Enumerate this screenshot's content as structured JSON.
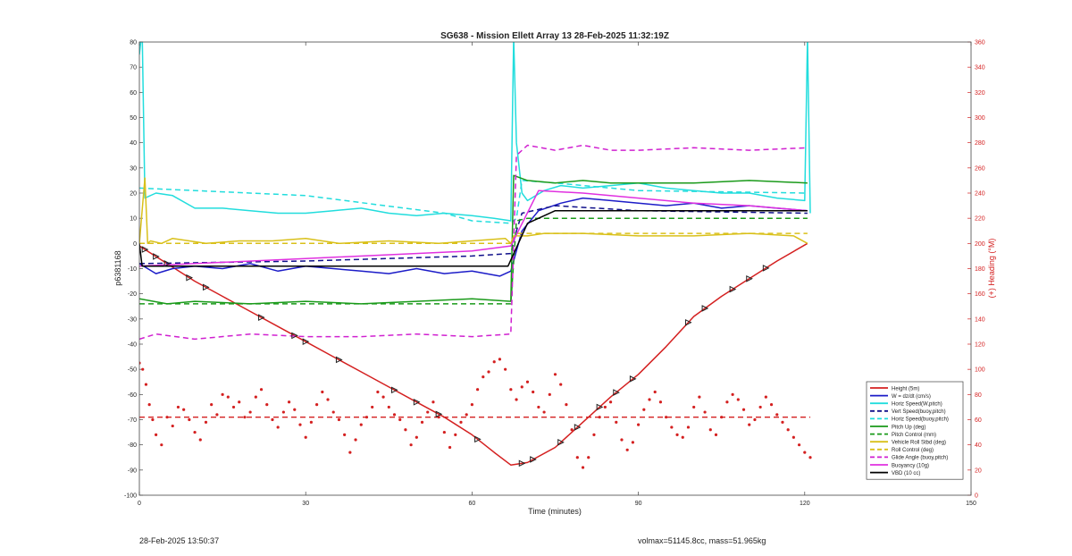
{
  "chart_data": {
    "type": "line",
    "title": "SG638 - Mission Ellett Array 13 28-Feb-2025 11:32:19Z",
    "xlabel": "Time (minutes)",
    "ylabel": "p6381168",
    "y2label": "(+) Heading (°M)",
    "xlim": [
      0,
      150
    ],
    "ylim": [
      -100,
      80
    ],
    "y2lim": [
      0,
      360
    ],
    "xticks": [
      "0",
      "30",
      "60",
      "90",
      "120",
      "150"
    ],
    "yticks": [
      "-100",
      "-90",
      "-80",
      "-70",
      "-60",
      "-50",
      "-40",
      "-30",
      "-20",
      "-10",
      "0",
      "10",
      "20",
      "30",
      "40",
      "50",
      "60",
      "70",
      "80"
    ],
    "y2ticks": [
      "0",
      "20",
      "40",
      "60",
      "80",
      "100",
      "120",
      "140",
      "160",
      "180",
      "200",
      "220",
      "240",
      "260",
      "280",
      "300",
      "320",
      "340",
      "360"
    ],
    "legend_position": "bottom-right",
    "series": [
      {
        "name": "Height (5m)",
        "color": "#d42020",
        "dash": "solid",
        "x": [
          0,
          5,
          10,
          15,
          20,
          25,
          30,
          35,
          40,
          45,
          50,
          55,
          60,
          64,
          67,
          70,
          75,
          80,
          85,
          90,
          95,
          100,
          105,
          110,
          115,
          120.5
        ],
        "y": [
          -1,
          -8,
          -15,
          -21,
          -27,
          -33,
          -39,
          -45,
          -51,
          -57,
          -63,
          -69,
          -76,
          -83,
          -88,
          -87,
          -81,
          -71,
          -61,
          -52,
          -41,
          -29,
          -21,
          -14,
          -7,
          0
        ]
      },
      {
        "name": "W = dz/dt (cm/s)",
        "color": "#1c1cc8",
        "dash": "solid",
        "x": [
          0,
          3,
          6,
          10,
          15,
          20,
          25,
          30,
          35,
          40,
          45,
          50,
          55,
          60,
          65,
          67,
          69,
          72,
          76,
          80,
          85,
          90,
          95,
          100,
          105,
          110,
          115,
          120.5
        ],
        "y": [
          -8,
          -12,
          -10,
          -9,
          -10,
          -8,
          -11,
          -9,
          -10,
          -11,
          -12,
          -10,
          -12,
          -11,
          -13,
          -11,
          5,
          13,
          16,
          18,
          17,
          16,
          15,
          16,
          14,
          15,
          14,
          13
        ]
      },
      {
        "name": "Horiz Speed(W,pitch)",
        "color": "#22dddd",
        "dash": "solid",
        "x": [
          0,
          0.5,
          1,
          3,
          6,
          10,
          15,
          20,
          25,
          30,
          35,
          40,
          45,
          50,
          55,
          60,
          64,
          67,
          67.5,
          68,
          69,
          70,
          73,
          76,
          80,
          85,
          90,
          95,
          100,
          105,
          110,
          115,
          120,
          120.5,
          121
        ],
        "y": [
          75,
          85,
          18,
          20,
          19,
          14,
          14,
          13,
          12,
          12,
          13,
          14,
          12,
          11,
          12,
          11,
          10,
          9,
          82,
          40,
          20,
          17,
          21,
          23,
          22,
          23,
          24,
          22,
          21,
          20,
          20,
          18,
          17,
          82,
          12
        ]
      },
      {
        "name": "Vert Speed(buoy,pitch)",
        "color": "#10108a",
        "dash": "dashed",
        "x": [
          0,
          30,
          60,
          67,
          68,
          69,
          75,
          90,
          120.5
        ],
        "y": [
          -8,
          -7,
          -5,
          -4,
          5,
          12,
          15,
          13,
          12
        ]
      },
      {
        "name": "Horiz Speed(buoy,pitch)",
        "color": "#22dddd",
        "dash": "dashed",
        "x": [
          0,
          30,
          55,
          60,
          67,
          68,
          69,
          75,
          90,
          120.5
        ],
        "y": [
          22,
          19,
          12,
          9,
          8,
          10,
          25,
          24,
          21,
          20
        ]
      },
      {
        "name": "Pitch Up (deg)",
        "color": "#1a9a1a",
        "dash": "solid",
        "x": [
          0,
          5,
          10,
          20,
          30,
          40,
          50,
          60,
          67,
          67.5,
          70,
          75,
          80,
          85,
          90,
          100,
          110,
          120.5
        ],
        "y": [
          -22,
          -24,
          -23,
          -24,
          -23,
          -24,
          -23,
          -22,
          -23,
          27,
          25,
          24,
          25,
          24,
          24,
          24,
          25,
          24
        ]
      },
      {
        "name": "Pitch Control (mm)",
        "color": "#1a9a1a",
        "dash": "dashed",
        "x": [
          0,
          30,
          60,
          67,
          68,
          70,
          90,
          120.5
        ],
        "y": [
          -24,
          -24,
          -24,
          -24,
          9,
          10,
          10,
          10
        ]
      },
      {
        "name": "Vehicle Roll Stbd (deg)",
        "color": "#d9c01a",
        "dash": "solid",
        "x": [
          0,
          1,
          1.5,
          2,
          4,
          6,
          9,
          12,
          18,
          24,
          30,
          36,
          45,
          54,
          60,
          66,
          67,
          67.5,
          70,
          73,
          80,
          90,
          100,
          110,
          118,
          120.5
        ],
        "y": [
          0,
          26,
          0,
          1,
          0,
          2,
          1,
          0,
          1,
          1,
          2,
          0,
          1,
          0,
          1,
          2,
          0,
          3,
          3,
          4,
          4,
          3,
          3,
          4,
          3,
          0
        ]
      },
      {
        "name": "Roll Control (deg)",
        "color": "#d9c01a",
        "dash": "dashed",
        "x": [
          0,
          30,
          60,
          67,
          68,
          90,
          120.5
        ],
        "y": [
          0,
          0,
          0,
          0,
          4,
          4,
          4
        ]
      },
      {
        "name": "Glide Angle (buoy,pitch)",
        "color": "#d020d0",
        "dash": "dashed",
        "x": [
          0,
          3,
          10,
          20,
          30,
          40,
          50,
          60,
          67,
          68,
          70,
          75,
          80,
          85,
          90,
          100,
          110,
          120.5
        ],
        "y": [
          -38,
          -36,
          -38,
          -36,
          -37,
          -37,
          -36,
          -37,
          -36,
          35,
          39,
          37,
          39,
          37,
          37,
          38,
          37,
          38
        ]
      },
      {
        "name": "Buoyancy (10g)",
        "color": "#e030e0",
        "dash": "solid",
        "x": [
          0,
          30,
          60,
          67,
          72,
          80,
          90,
          100,
          110,
          120.5
        ],
        "y": [
          -9,
          -6,
          -3,
          -1,
          21,
          20,
          18,
          16,
          15,
          13
        ]
      },
      {
        "name": "VBD (10 cc)",
        "color": "#000000",
        "dash": "solid",
        "x": [
          0,
          0.5,
          66.5,
          70,
          75,
          80,
          90,
          100,
          110,
          120.5
        ],
        "y": [
          0,
          -9,
          -9,
          8,
          13,
          13,
          13,
          13,
          13,
          13
        ]
      }
    ],
    "heading_series": {
      "color": "#d42020",
      "mean": 62,
      "x": [
        0,
        0.6,
        1.2,
        1.8,
        2.4,
        3,
        4,
        5,
        6,
        7,
        8,
        9,
        10,
        11,
        12,
        13,
        14,
        15,
        16,
        17,
        18,
        19,
        20,
        21,
        22,
        23,
        24,
        25,
        26,
        27,
        28,
        29,
        30,
        31,
        32,
        33,
        34,
        35,
        36,
        37,
        38,
        39,
        40,
        41,
        42,
        43,
        44,
        45,
        46,
        47,
        48,
        49,
        50,
        51,
        52,
        53,
        54,
        55,
        56,
        57,
        58,
        59,
        60,
        61,
        62,
        63,
        64,
        65,
        66,
        67,
        68,
        69,
        70,
        71,
        72,
        73,
        74,
        75,
        76,
        77,
        78,
        79,
        80,
        81,
        82,
        83,
        84,
        85,
        86,
        87,
        88,
        89,
        90,
        91,
        92,
        93,
        94,
        95,
        96,
        97,
        98,
        99,
        100,
        101,
        102,
        103,
        104,
        105,
        106,
        107,
        108,
        109,
        110,
        111,
        112,
        113,
        114,
        115,
        116,
        117,
        118,
        119,
        120,
        121
      ],
      "y": [
        105,
        100,
        88,
        72,
        60,
        48,
        40,
        62,
        55,
        70,
        68,
        60,
        50,
        44,
        58,
        72,
        64,
        80,
        78,
        70,
        74,
        62,
        66,
        78,
        84,
        72,
        60,
        54,
        66,
        74,
        68,
        56,
        46,
        58,
        72,
        82,
        76,
        66,
        60,
        48,
        34,
        44,
        56,
        62,
        70,
        82,
        78,
        70,
        64,
        60,
        52,
        40,
        46,
        58,
        66,
        74,
        62,
        50,
        38,
        48,
        58,
        64,
        72,
        84,
        94,
        98,
        106,
        108,
        100,
        84,
        76,
        86,
        90,
        82,
        70,
        66,
        80,
        96,
        88,
        72,
        52,
        30,
        22,
        30,
        48,
        62,
        70,
        74,
        58,
        44,
        36,
        42,
        56,
        68,
        76,
        82,
        74,
        62,
        54,
        48,
        46,
        54,
        70,
        78,
        66,
        52,
        48,
        62,
        74,
        80,
        76,
        68,
        56,
        60,
        70,
        78,
        72,
        64,
        58,
        52,
        46,
        40,
        34,
        30
      ]
    },
    "markers": {
      "color": "#222222",
      "x": [
        1,
        3,
        5,
        9,
        12,
        22,
        28,
        30,
        36,
        46,
        50,
        54,
        61,
        69,
        71,
        76,
        79,
        83,
        86,
        89,
        99,
        102,
        107,
        110,
        113
      ]
    }
  },
  "footer": {
    "timestamp": "28-Feb-2025 13:50:37",
    "stats": "volmax=51145.8cc, mass=51.965kg"
  }
}
